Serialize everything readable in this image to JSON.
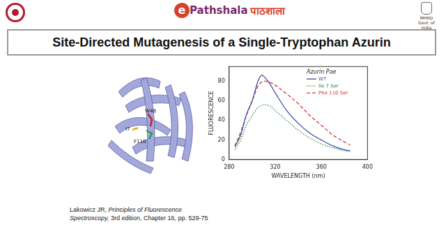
{
  "header": {
    "logo_center": [
      "Pathshala",
      "पाठशाला"
    ],
    "logo_right": [
      "MHRD",
      "Govt. of India"
    ]
  },
  "title": "Site-Directed Mutagenesis of a Single-Tryptophan Azurin",
  "structure": {
    "labels": [
      "W48",
      "I7",
      "F110"
    ]
  },
  "reference": {
    "before": "Lakowicz JR, ",
    "italic": "Principles of Fluorescence Spectroscopy,",
    "after": " 3rd edition, Chapter 16, pp. 529-75"
  },
  "chart_data": {
    "type": "line",
    "x_label": "WAVELENGTH (nm)",
    "y_label": "FLUORESCENCE",
    "legend_title": "Azurin Pae",
    "x": [
      285,
      290,
      295,
      300,
      305,
      308,
      310,
      315,
      320,
      330,
      340,
      350,
      360,
      370,
      380,
      385
    ],
    "series": [
      {
        "name": "WT",
        "color": "#3a4fa0",
        "line_style": "solid",
        "values": [
          13,
          25,
          46,
          60,
          80,
          86,
          85,
          78,
          68,
          50,
          37,
          27,
          20,
          14,
          10,
          9
        ]
      },
      {
        "name": "Ile 7 Ser",
        "color": "#2e8b3a",
        "line_style": "dotted",
        "values": [
          10,
          20,
          35,
          45,
          53,
          55,
          56,
          55,
          50,
          40,
          30,
          22,
          16,
          12,
          9,
          8
        ]
      },
      {
        "name": "Phe 110 Ser",
        "color": "#d9303a",
        "line_style": "dashed",
        "values": [
          14,
          28,
          45,
          60,
          75,
          79,
          80,
          79,
          76,
          67,
          57,
          45,
          35,
          25,
          18,
          15
        ]
      }
    ],
    "xlim": [
      280,
      400
    ],
    "xticks": [
      280,
      320,
      360,
      400
    ],
    "ylim": [
      0,
      95
    ],
    "yticks": [
      0,
      20,
      40,
      60,
      80
    ],
    "grid": false,
    "legend": "upper right"
  }
}
